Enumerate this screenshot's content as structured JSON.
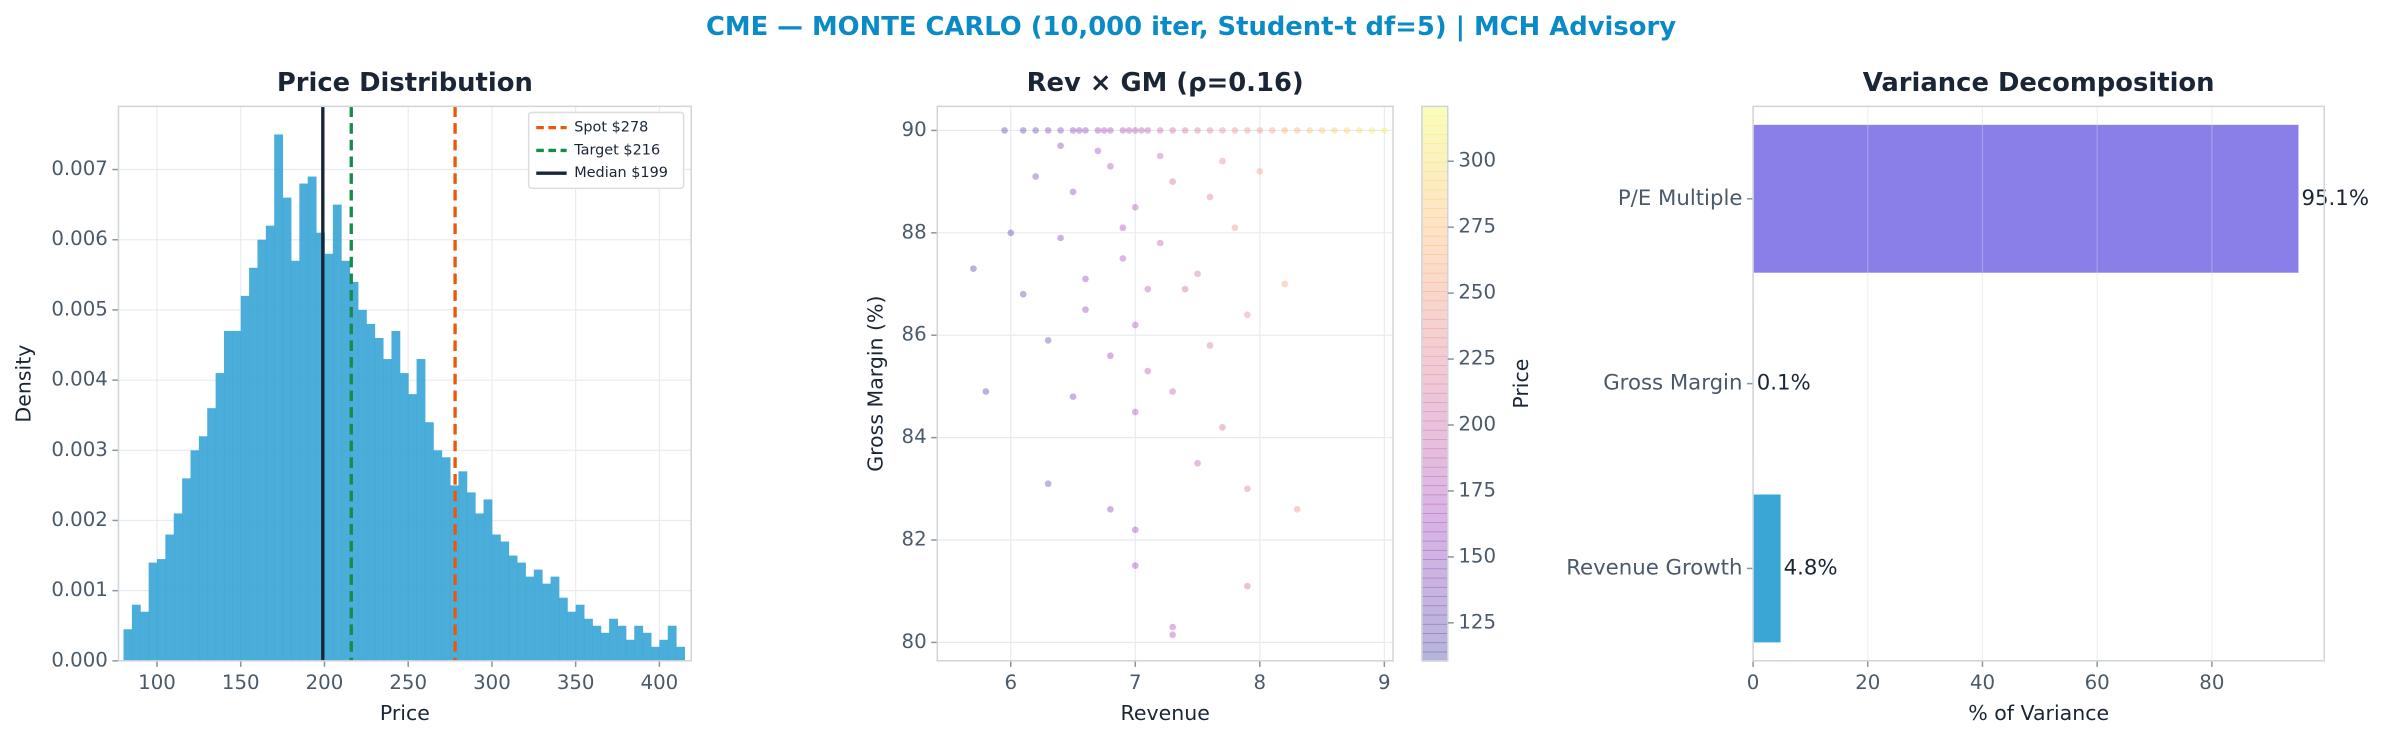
{
  "title": "CME — MONTE CARLO (10,000 iter, Student-t df=5) | MCH Advisory",
  "chart_data": [
    {
      "type": "histogram",
      "title": "Price Distribution",
      "x_label": "Price",
      "y_label": "Density",
      "color": "#3ca6d6",
      "bins": [
        80,
        85,
        90,
        95,
        100,
        105,
        110,
        115,
        120,
        125,
        130,
        135,
        140,
        145,
        150,
        155,
        160,
        165,
        170,
        175,
        180,
        185,
        190,
        195,
        200,
        205,
        210,
        215,
        220,
        225,
        230,
        235,
        240,
        245,
        250,
        255,
        260,
        265,
        270,
        275,
        280,
        285,
        290,
        295,
        300,
        305,
        310,
        315,
        320,
        325,
        330,
        335,
        340,
        345,
        350,
        355,
        360,
        365,
        370,
        375,
        380,
        385,
        390,
        395,
        400,
        405,
        410,
        415
      ],
      "values": [
        0.00045,
        0.0008,
        0.0007,
        0.0014,
        0.00145,
        0.0018,
        0.0021,
        0.0026,
        0.003,
        0.0032,
        0.0036,
        0.0041,
        0.0047,
        0.0047,
        0.0052,
        0.0056,
        0.006,
        0.0062,
        0.0075,
        0.0066,
        0.0057,
        0.0068,
        0.0069,
        0.0061,
        0.0058,
        0.0065,
        0.0057,
        0.0054,
        0.005,
        0.0048,
        0.0046,
        0.0043,
        0.0047,
        0.0041,
        0.0038,
        0.0043,
        0.0034,
        0.003,
        0.0029,
        0.0025,
        0.0027,
        0.0024,
        0.0021,
        0.0023,
        0.0018,
        0.0017,
        0.0015,
        0.0014,
        0.0012,
        0.0013,
        0.0011,
        0.0012,
        0.0009,
        0.0007,
        0.0008,
        0.0006,
        0.0005,
        0.0004,
        0.0006,
        0.0005,
        0.0003,
        0.0005,
        0.0004,
        0.0002,
        0.0003,
        0.0005,
        0.0002
      ],
      "vlines": [
        {
          "name": "Spot $278",
          "x": 278,
          "color": "#e8590c",
          "dash": true
        },
        {
          "name": "Target $216",
          "x": 216,
          "color": "#1a8a4a",
          "dash": true
        },
        {
          "name": "Median $199",
          "x": 199,
          "color": "#1a2636",
          "dash": false
        }
      ],
      "xlim": [
        77,
        419
      ],
      "ylim": [
        0,
        0.0079
      ],
      "xticks": [
        100,
        150,
        200,
        250,
        300,
        350,
        400
      ],
      "yticks": [
        {
          "value": 0,
          "label": "0.000"
        },
        0.001,
        0.002,
        0.003,
        0.004,
        0.005,
        0.006,
        0.007
      ],
      "grid": true,
      "legend": "upper right"
    },
    {
      "type": "scatter",
      "title": "Rev × GM (ρ=0.16)",
      "x_label": "Revenue",
      "y_label": "Gross Margin (%)",
      "colorbar_label": "Price",
      "x": [
        5.95,
        6.1,
        6.2,
        6.3,
        6.4,
        6.5,
        6.55,
        6.6,
        6.7,
        6.75,
        6.8,
        6.9,
        6.95,
        7.0,
        7.05,
        7.1,
        7.2,
        7.3,
        7.4,
        7.5,
        7.6,
        7.7,
        7.8,
        7.9,
        8.0,
        8.1,
        8.2,
        8.3,
        8.4,
        8.5,
        8.6,
        8.7,
        8.8,
        8.9,
        9.0,
        6.2,
        6.5,
        6.8,
        7.0,
        7.3,
        7.6,
        6.4,
        6.9,
        7.2,
        7.5,
        7.8,
        6.1,
        6.6,
        7.0,
        7.4,
        7.9,
        5.7,
        6.3,
        6.8,
        7.1,
        7.6,
        8.2,
        6.5,
        7.0,
        7.3,
        7.7,
        5.8,
        6.3,
        6.8,
        7.0,
        7.5,
        7.9,
        8.3,
        7.0,
        7.3,
        7.3,
        7.9,
        6.0,
        6.7,
        7.2,
        7.7,
        8.0,
        6.4,
        6.9,
        7.1,
        6.6
      ],
      "y": [
        90,
        90,
        90,
        90,
        90,
        90,
        90,
        90,
        90,
        90,
        90,
        90,
        90,
        90,
        90,
        90,
        90,
        90,
        90,
        90,
        90,
        90,
        90,
        90,
        90,
        90,
        90,
        90,
        90,
        90,
        90,
        90,
        90,
        90,
        90,
        89.1,
        88.8,
        89.3,
        88.5,
        89.0,
        88.7,
        87.9,
        87.5,
        87.8,
        87.2,
        88.1,
        86.8,
        86.5,
        86.2,
        86.9,
        86.4,
        87.3,
        85.9,
        85.6,
        85.3,
        85.8,
        87.0,
        84.8,
        84.5,
        84.9,
        84.2,
        84.9,
        83.1,
        82.6,
        82.2,
        83.5,
        83.0,
        82.6,
        81.5,
        80.3,
        80.15,
        81.1,
        88.0,
        89.6,
        89.5,
        89.4,
        89.2,
        89.7,
        88.1,
        86.9,
        87.1
      ],
      "c": [
        115,
        125,
        131,
        138,
        145,
        151,
        154,
        158,
        164,
        167,
        171,
        177,
        181,
        184,
        187,
        190,
        197,
        204,
        210,
        217,
        223,
        230,
        236,
        243,
        249,
        256,
        262,
        269,
        276,
        282,
        289,
        295,
        302,
        308,
        315,
        140,
        150,
        175,
        180,
        205,
        220,
        140,
        170,
        190,
        210,
        240,
        125,
        150,
        175,
        200,
        230,
        110,
        130,
        160,
        180,
        210,
        260,
        140,
        170,
        190,
        210,
        112,
        125,
        150,
        160,
        190,
        215,
        240,
        165,
        175,
        175,
        205,
        120,
        165,
        195,
        230,
        250,
        145,
        170,
        185,
        155
      ],
      "colormap": "plasma",
      "opacity": 0.3,
      "xlim": [
        5.41,
        9.07
      ],
      "ylim": [
        79.64,
        90.47
      ],
      "clim": [
        110.6,
        320.8
      ],
      "xticks": [
        6,
        7,
        8,
        9
      ],
      "yticks": [
        80,
        82,
        84,
        86,
        88,
        90
      ],
      "cticks": [
        125,
        150,
        175,
        200,
        225,
        250,
        275,
        300
      ],
      "grid": true
    },
    {
      "type": "barh",
      "title": "Variance Decomposition",
      "x_label": "% of Variance",
      "categories": [
        "P/E Multiple",
        "Gross Margin",
        "Revenue Growth"
      ],
      "values": [
        95.1,
        0.1,
        4.8
      ],
      "value_labels": [
        "95.1%",
        "0.1%",
        "4.8%"
      ],
      "colors": [
        "#8a7fe8",
        "#6fbf73",
        "#3aa6d6"
      ],
      "xlim": [
        0,
        99.6
      ],
      "xticks": [
        0,
        20,
        40,
        60,
        80
      ],
      "grid": true
    }
  ]
}
